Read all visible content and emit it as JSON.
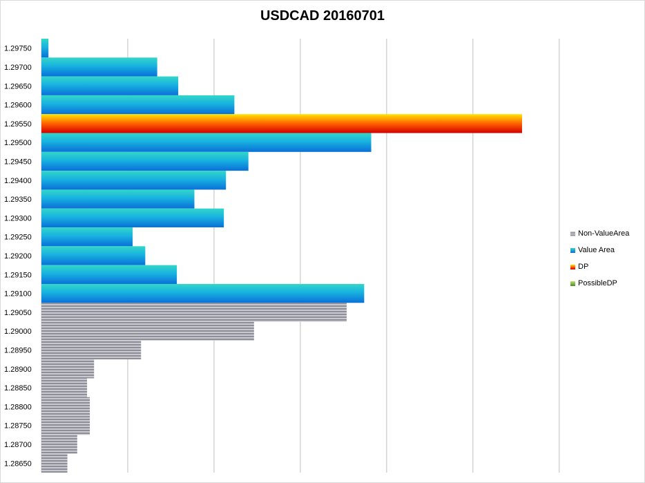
{
  "chart_data": {
    "type": "bar",
    "orientation": "horizontal",
    "title": "USDCAD 20160701",
    "categories": [
      "1.29750",
      "1.29700",
      "1.29650",
      "1.29600",
      "1.29550",
      "1.29500",
      "1.29450",
      "1.29400",
      "1.29350",
      "1.29300",
      "1.29250",
      "1.29200",
      "1.29150",
      "1.29100",
      "1.29050",
      "1.29000",
      "1.28950",
      "1.28900",
      "1.28850",
      "1.28800",
      "1.28750",
      "1.28700",
      "1.28650"
    ],
    "values": [
      1,
      16.5,
      19.5,
      27.5,
      68.5,
      47,
      29.5,
      26.3,
      21.8,
      26,
      13,
      14.8,
      19.3,
      46,
      43.5,
      30.3,
      14.2,
      7.5,
      6.5,
      6.9,
      6.9,
      5.1,
      3.7
    ],
    "bar_class": [
      "value",
      "value",
      "value",
      "value",
      "dp",
      "value",
      "value",
      "value",
      "value",
      "value",
      "value",
      "value",
      "value",
      "value",
      "nonvalue",
      "nonvalue",
      "nonvalue",
      "nonvalue",
      "nonvalue",
      "nonvalue",
      "nonvalue",
      "nonvalue",
      "nonvalue"
    ],
    "xlim": [
      0,
      85
    ],
    "x_grid_step": 12.3,
    "grid": true,
    "legend": [
      {
        "name": "Non-ValueArea",
        "key": "nonvalue",
        "color": "#a6a6ad"
      },
      {
        "name": "Value Area",
        "key": "value",
        "color": "#1aa0d6"
      },
      {
        "name": "DP",
        "key": "dp",
        "color": "#ff6000"
      },
      {
        "name": "PossibleDP",
        "key": "possibledp",
        "color": "#76a836"
      }
    ],
    "legend_position": "right"
  }
}
